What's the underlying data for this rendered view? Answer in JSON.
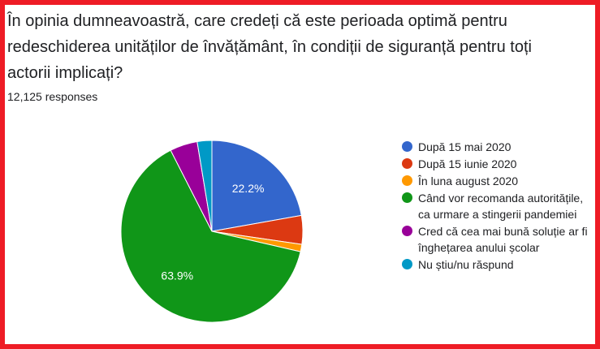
{
  "question": "În opinia dumneavoastră, care credeți că este perioada optimă pentru redeschiderea unităților de învățământ, în condiții de siguranță pentru toți actorii implicați?",
  "responses": "12,125 responses",
  "colors": {
    "frame": "#ee1c25"
  },
  "chart_data": {
    "type": "pie",
    "categories": [
      "După 15 mai 2020",
      "După 15 iunie 2020",
      "În luna august 2020",
      "Când vor recomanda autoritățile, ca urmare a stingerii pandemiei",
      "Cred că cea mai bună soluție ar fi înghețarea anului școlar",
      "Nu știu/nu răspund"
    ],
    "values": [
      22.2,
      5.1,
      1.3,
      63.9,
      4.9,
      2.6
    ],
    "colors": [
      "#3366cc",
      "#dc3912",
      "#ff9900",
      "#109618",
      "#990099",
      "#0099c6"
    ],
    "data_labels": [
      "22.2%",
      "",
      "",
      "63.9%",
      "",
      ""
    ],
    "legend": "right",
    "start_angle": 90,
    "direction": "clockwise"
  }
}
